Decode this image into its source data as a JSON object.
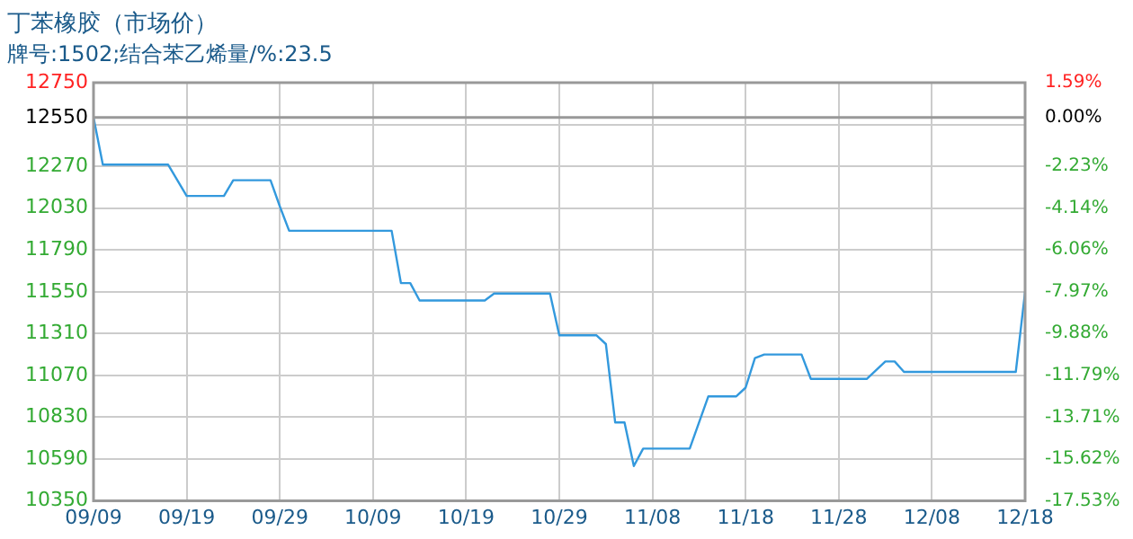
{
  "chart_data": {
    "type": "line",
    "title": "丁苯橡胶（市场价）",
    "subtitle": "牌号:1502;结合苯乙烯量/%:23.5",
    "x": [
      "--09-09",
      "--09-10",
      "--09-17",
      "--09-19",
      "--09-23",
      "--09-24",
      "--09-28",
      "--09-29",
      "--09-30",
      "--10-11",
      "--10-12",
      "--10-13",
      "--10-14",
      "--10-21",
      "--10-22",
      "--10-28",
      "--10-29",
      "--11-02",
      "--11-03",
      "--11-04",
      "--11-05",
      "--11-06",
      "--11-07",
      "--11-12",
      "--11-14",
      "--11-17",
      "--11-18",
      "--11-19",
      "--11-20",
      "--11-24",
      "--11-25",
      "--12-01",
      "--12-03",
      "--12-04",
      "--12-05",
      "--12-17",
      "--12-18"
    ],
    "series": [
      {
        "color": "#3399dd",
        "values": [
          12550,
          12280,
          12280,
          12100,
          12100,
          12190,
          12190,
          12040,
          11900,
          11900,
          11600,
          11600,
          11500,
          11500,
          11540,
          11540,
          11300,
          11300,
          11250,
          10800,
          10800,
          10550,
          10650,
          10650,
          10950,
          10950,
          11000,
          11170,
          11190,
          11190,
          11050,
          11050,
          11150,
          11150,
          11090,
          11090,
          11550
        ]
      }
    ],
    "xlim": [
      "--09-09",
      "--12-18"
    ],
    "xticks": [
      {
        "value": "--09-09",
        "label": "09/09"
      },
      {
        "value": "--09-19",
        "label": "09/19"
      },
      {
        "value": "--09-29",
        "label": "09/29"
      },
      {
        "value": "--10-09",
        "label": "10/09"
      },
      {
        "value": "--10-19",
        "label": "10/19"
      },
      {
        "value": "--10-29",
        "label": "10/29"
      },
      {
        "value": "--11-08",
        "label": "11/08"
      },
      {
        "value": "--11-18",
        "label": "11/18"
      },
      {
        "value": "--11-28",
        "label": "11/28"
      },
      {
        "value": "--12-08",
        "label": "12/08"
      },
      {
        "value": "--12-18",
        "label": "12/18"
      }
    ],
    "ylim": [
      10350,
      12750
    ],
    "yticks": [
      10350,
      10590,
      10830,
      11070,
      11310,
      11550,
      11790,
      12030,
      12270,
      {
        "value": 12510,
        "label": null
      },
      12550,
      12750
    ],
    "y2lim": [
      -17.53,
      1.59
    ],
    "y2ticks": [
      {
        "value": -17.53,
        "label": "-17.53%"
      },
      {
        "value": -15.62,
        "label": "-15.62%"
      },
      {
        "value": -13.71,
        "label": "-13.71%"
      },
      {
        "value": -11.79,
        "label": "-11.79%"
      },
      {
        "value": -9.88,
        "label": "-9.88%"
      },
      {
        "value": -7.97,
        "label": "-7.97%"
      },
      {
        "value": -6.06,
        "label": "-6.06%"
      },
      {
        "value": -4.14,
        "label": "-4.14%"
      },
      {
        "value": -2.23,
        "label": "-2.23%"
      },
      {
        "value": 0,
        "label": "0.00%"
      },
      {
        "value": 1.59,
        "label": "1.59%"
      }
    ],
    "ref_lines": [
      {
        "axis": "y",
        "value": 12550,
        "color": "#999999"
      }
    ],
    "grid": true,
    "legend": false,
    "marker": "none",
    "line_style": "solid"
  }
}
